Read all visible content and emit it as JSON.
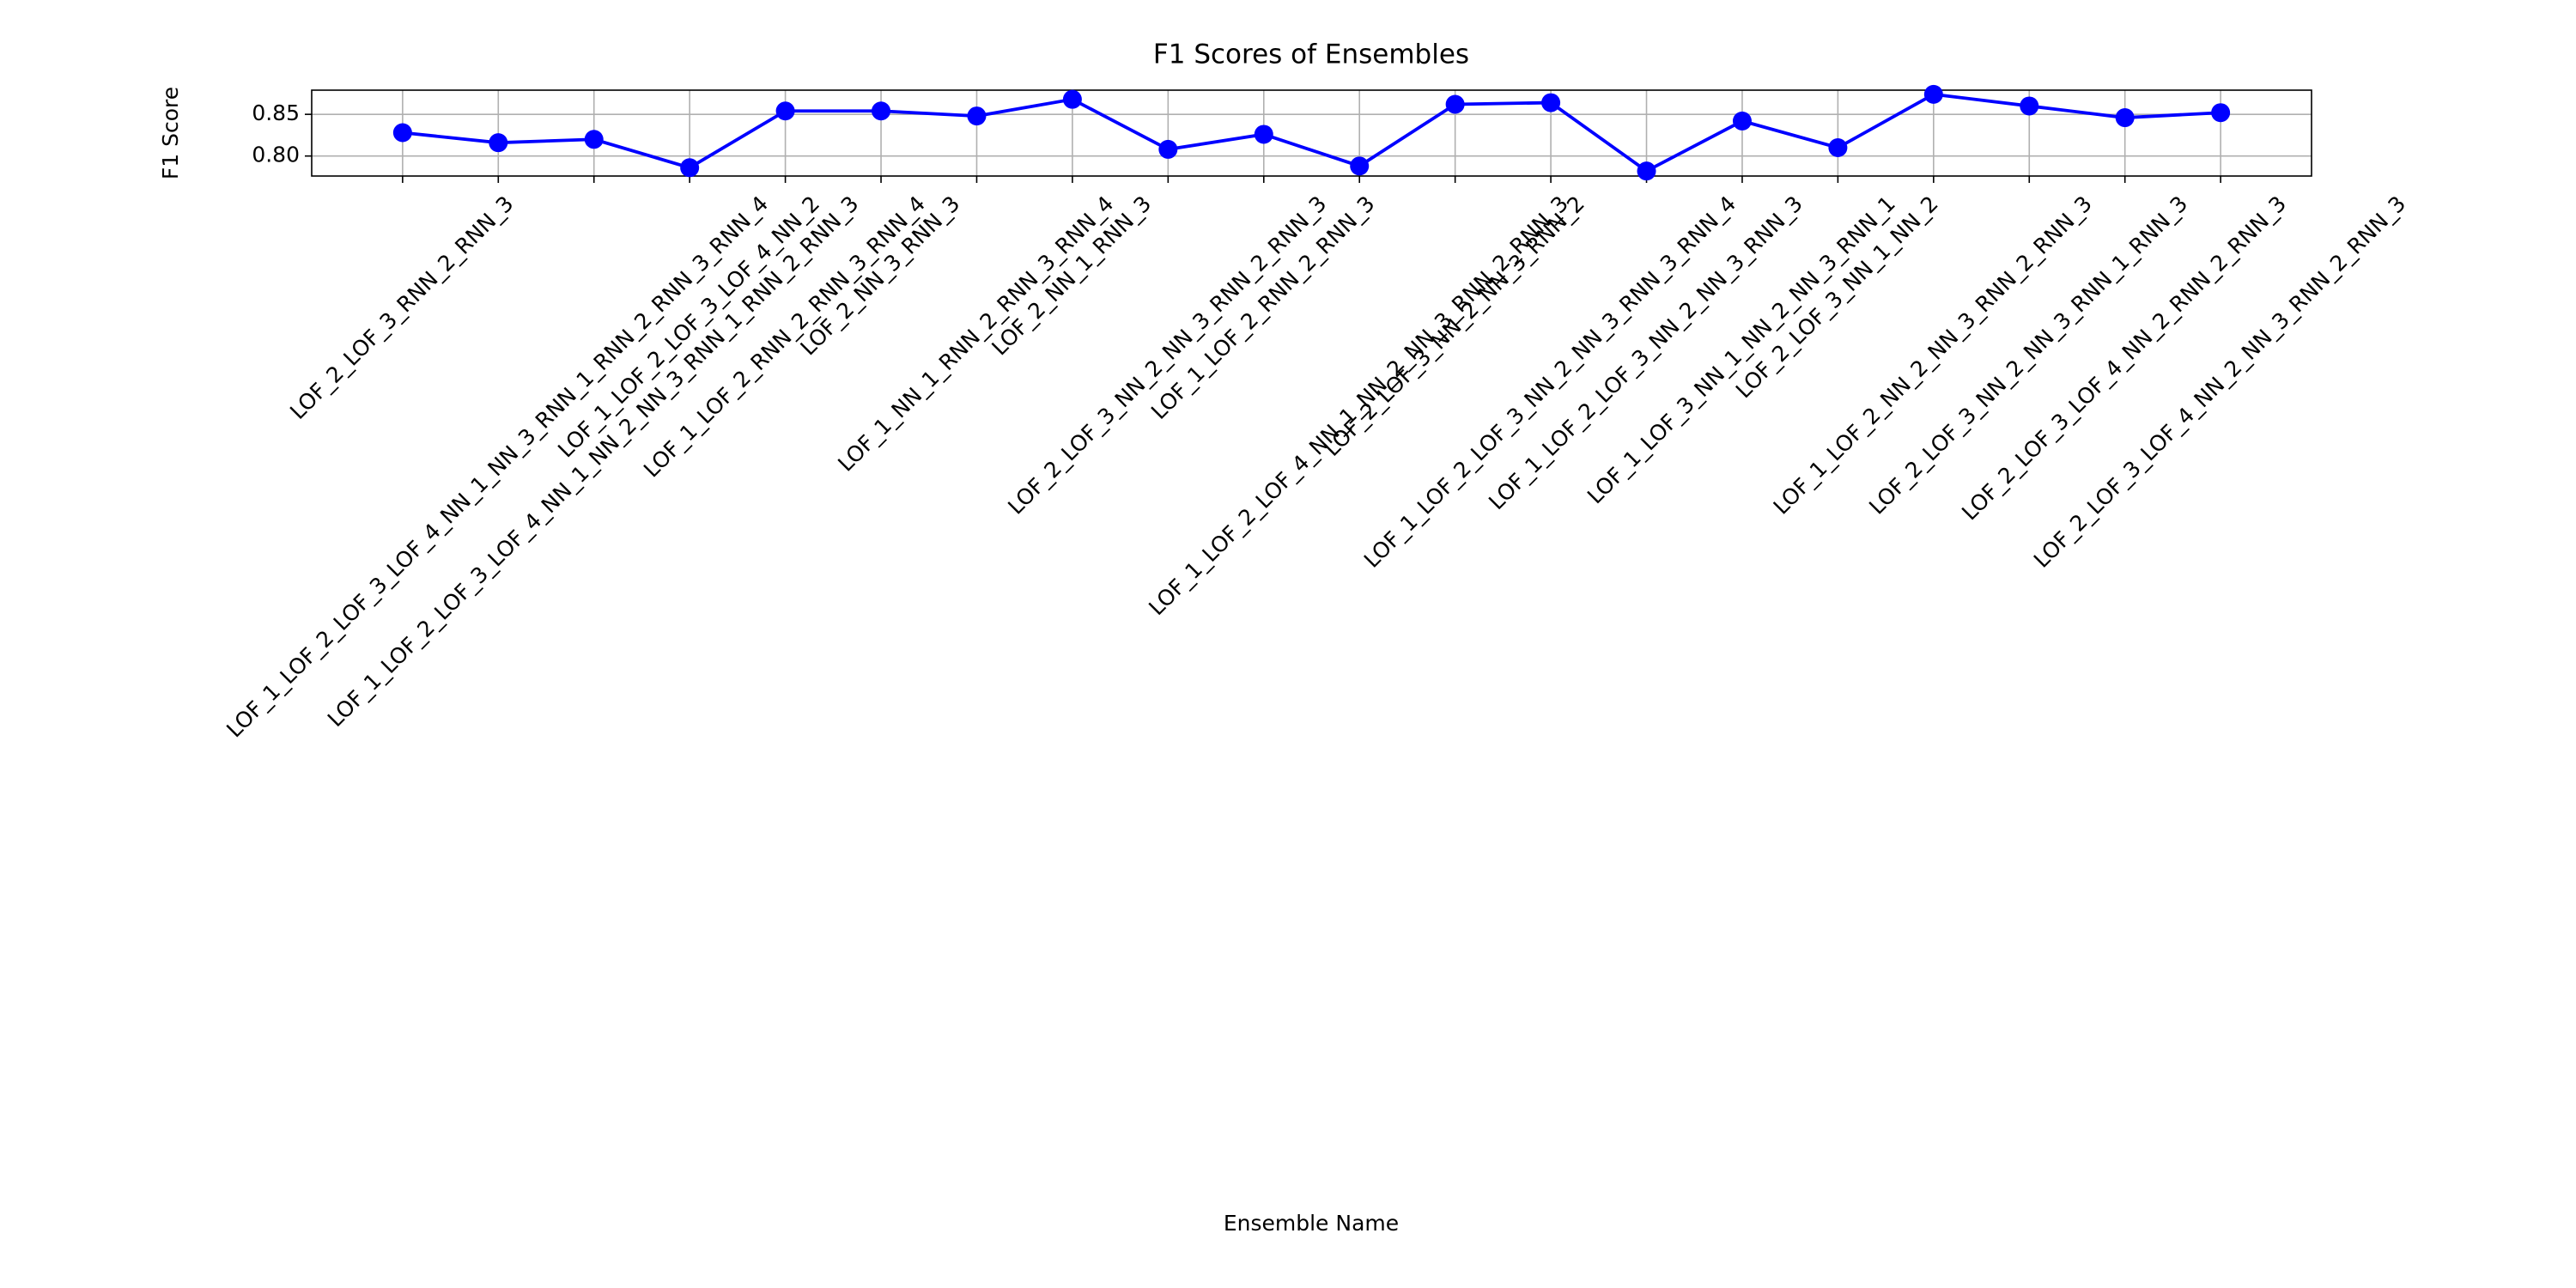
{
  "chart_data": {
    "type": "line",
    "title": "F1 Scores of Ensembles",
    "x_label": "Ensemble Name",
    "y_label": "F1 Score",
    "categories": [
      "LOF_2_LOF_3_RNN_2_RNN_3",
      "LOF_1_LOF_2_LOF_3_LOF_4_NN_1_NN_3_RNN_1_RNN_2_RNN_3_RNN_4",
      "LOF_1_LOF_2_LOF_3_LOF_4_NN_1_NN_2_NN_3_RNN_1_RNN_2_RNN_3",
      "LOF_1_LOF_2_LOF_3_LOF_4_NN_2",
      "LOF_1_LOF_2_RNN_2_RNN_3_RNN_4",
      "LOF_2_NN_3_RNN_3",
      "LOF_1_NN_1_RNN_2_RNN_3_RNN_4",
      "LOF_2_NN_1_RNN_3",
      "LOF_2_LOF_3_NN_2_NN_3_RNN_2_RNN_3",
      "LOF_1_LOF_2_RNN_2_RNN_3",
      "LOF_1_LOF_2_LOF_4_NN_1_NN_2_NN_3_RNN_2_RNN_3",
      "LOF_2_LOF_3_NN_2_NN_3_RNN_2",
      "LOF_1_LOF_2_LOF_3_NN_2_NN_3_RNN_3_RNN_4",
      "LOF_1_LOF_2_LOF_3_NN_2_NN_3_RNN_3",
      "LOF_1_LOF_3_NN_1_NN_2_NN_3_RNN_1",
      "LOF_2_LOF_3_NN_1_NN_2",
      "LOF_1_LOF_2_NN_2_NN_3_RNN_2_RNN_3",
      "LOF_2_LOF_3_NN_2_NN_3_RNN_1_RNN_3",
      "LOF_2_LOF_3_LOF_4_NN_2_RNN_2_RNN_3",
      "LOF_2_LOF_3_LOF_4_NN_2_NN_3_RNN_2_RNN_3"
    ],
    "series": [
      {
        "name": "F1 Score",
        "color": "#0000ff",
        "values": [
          0.828,
          0.816,
          0.82,
          0.786,
          0.854,
          0.854,
          0.848,
          0.868,
          0.808,
          0.826,
          0.788,
          0.862,
          0.864,
          0.782,
          0.842,
          0.81,
          0.874,
          0.86,
          0.846,
          0.852
        ]
      }
    ],
    "ylim": [
      0.776,
      0.879
    ],
    "yticks": [
      {
        "value": 0.8,
        "label": "0.80"
      },
      {
        "value": 0.85,
        "label": "0.85"
      }
    ],
    "grid": true
  }
}
